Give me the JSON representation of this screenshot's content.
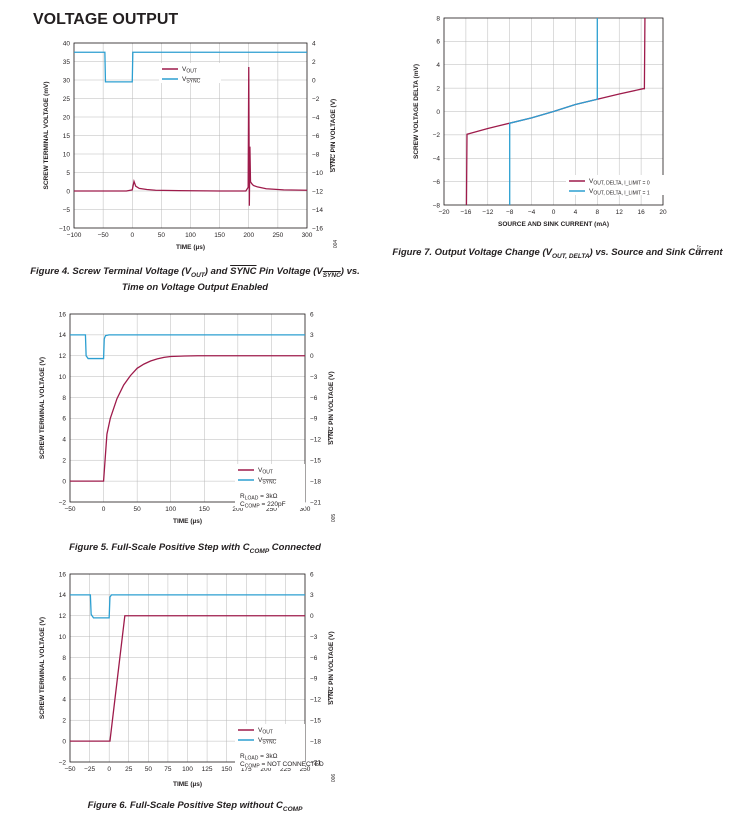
{
  "page": {
    "section_title": "VOLTAGE OUTPUT"
  },
  "captions": {
    "fig4_line1": "Figure 4. Screw Terminal Voltage (V",
    "fig4_line1_sub": "OUT",
    "fig4_line1_mid": ") and ",
    "fig4_line1_sync": "SYNC",
    "fig4_line1_mid2": " Pin Voltage (V",
    "fig4_line1_sub2": "SYNC",
    "fig4_line1_end": ") vs.",
    "fig4_line2": "Time on Voltage Output Enabled",
    "fig5": "Figure 5. Full-Scale Positive Step with C",
    "fig5_sub": "COMP",
    "fig5_end": " Connected",
    "fig6": "Figure 6. Full-Scale Positive Step without C",
    "fig6_sub": "COMP",
    "fig7": "Figure 7. Output Voltage Change (V",
    "fig7_sub": "OUT, DELTA",
    "fig7_end": ") vs. Source and Sink Current"
  },
  "colors": {
    "vout": "#9e1b4b",
    "vsync": "#2c9fd1",
    "grid": "#b9b9b9",
    "axis": "#231f20"
  },
  "chart_data": [
    {
      "id": "fig4",
      "type": "line",
      "xlabel": "TIME (µs)",
      "ylabel": "SCREW TERMINAL VOLTAGE (mV)",
      "y2label": "SYNC PIN VOLTAGE (V)",
      "xlim": [
        -100,
        300
      ],
      "ylim": [
        -10,
        40
      ],
      "y2lim": [
        -16,
        4
      ],
      "xticks": [
        "−100",
        "−50",
        "0",
        "50",
        "100",
        "150",
        "200",
        "250",
        "300"
      ],
      "yticks": [
        "−10",
        "−5",
        "0",
        "5",
        "10",
        "15",
        "20",
        "25",
        "30",
        "35",
        "40"
      ],
      "y2ticks": [
        "−16",
        "−14",
        "−12",
        "−10",
        "−8",
        "−6",
        "−4",
        "−2",
        "0",
        "2",
        "4"
      ],
      "legend": {
        "position": "top-center",
        "entries": [
          "VOUT",
          "VSYNC"
        ]
      },
      "fig_id": "004",
      "series": [
        {
          "name": "VOUT",
          "axis": "left",
          "x": [
            -100,
            -50,
            -10,
            0,
            3,
            6,
            12,
            25,
            40,
            80,
            150,
            195,
            199,
            200,
            201,
            202,
            203,
            205,
            208,
            215,
            230,
            260,
            300
          ],
          "y": [
            0,
            0,
            0,
            0.3,
            2.6,
            1.3,
            0.7,
            0.4,
            0.2,
            0.1,
            0,
            0,
            1,
            33.5,
            -4,
            12,
            2.5,
            2,
            1.5,
            1.1,
            0.6,
            0.3,
            0.2
          ]
        },
        {
          "name": "VSYNC",
          "axis": "right",
          "x": [
            -100,
            -47,
            -46,
            0,
            1,
            300
          ],
          "y": [
            3,
            3,
            -0.2,
            -0.2,
            3,
            3
          ]
        }
      ]
    },
    {
      "id": "fig5",
      "type": "line",
      "xlabel": "TIME (µs)",
      "ylabel": "SCREW TERMINAL VOLTAGE (V)",
      "y2label": "SYNC PIN VOLTAGE (V)",
      "xlim": [
        -50,
        300
      ],
      "ylim": [
        -2,
        16
      ],
      "y2lim": [
        -21,
        6
      ],
      "xticks": [
        "−50",
        "0",
        "50",
        "100",
        "150",
        "200",
        "250",
        "300"
      ],
      "yticks": [
        "−2",
        "0",
        "2",
        "4",
        "6",
        "8",
        "10",
        "12",
        "14",
        "16"
      ],
      "y2ticks": [
        "−21",
        "−18",
        "−15",
        "−12",
        "−9",
        "−6",
        "−3",
        "0",
        "3",
        "6"
      ],
      "legend": {
        "position": "bottom-right",
        "entries": [
          "VOUT",
          "VSYNC"
        ]
      },
      "notes": [
        "RLOAD = 3kΩ",
        "CCOMP = 220pF"
      ],
      "fig_id": "005",
      "series": [
        {
          "name": "VOUT",
          "axis": "left",
          "x": [
            -50,
            -2,
            0,
            5,
            10,
            20,
            30,
            40,
            50,
            60,
            70,
            80,
            90,
            100,
            120,
            140,
            160,
            200,
            300
          ],
          "y": [
            0,
            0,
            0,
            4.5,
            6,
            7.9,
            9.2,
            10.1,
            10.8,
            11.2,
            11.5,
            11.7,
            11.85,
            11.93,
            11.98,
            12,
            12,
            12,
            12
          ]
        },
        {
          "name": "VSYNC",
          "axis": "right",
          "x": [
            -50,
            -27,
            -26,
            -23,
            0,
            1,
            2,
            3,
            8,
            300
          ],
          "y": [
            3,
            3,
            0,
            -0.4,
            -0.4,
            2.4,
            2.7,
            2.9,
            3,
            3
          ]
        }
      ]
    },
    {
      "id": "fig6",
      "type": "line",
      "xlabel": "TIME (µs)",
      "ylabel": "SCREW TERMINAL VOLTAGE (V)",
      "y2label": "SYNC PIN VOLTAGE (V)",
      "xlim": [
        -50,
        250
      ],
      "ylim": [
        -2,
        16
      ],
      "y2lim": [
        -21,
        6
      ],
      "xticks": [
        "−50",
        "−25",
        "0",
        "25",
        "50",
        "75",
        "100",
        "125",
        "150",
        "175",
        "200",
        "225",
        "250"
      ],
      "yticks": [
        "−2",
        "0",
        "2",
        "4",
        "6",
        "8",
        "10",
        "12",
        "14",
        "16"
      ],
      "y2ticks": [
        "−21",
        "−18",
        "−15",
        "−12",
        "−9",
        "−6",
        "−3",
        "0",
        "3",
        "6"
      ],
      "legend": {
        "position": "bottom-right",
        "entries": [
          "VOUT",
          "VSYNC"
        ]
      },
      "notes": [
        "RLOAD = 3kΩ",
        "CCOMP = NOT CONNECTED"
      ],
      "fig_id": "006",
      "series": [
        {
          "name": "VOUT",
          "axis": "right_curve_unused",
          "x": [
            -50,
            0,
            1,
            20,
            22,
            250
          ],
          "y": [
            0,
            0,
            0,
            12,
            12,
            12
          ]
        },
        {
          "name": "VSYNC",
          "axis": "right",
          "x": [
            -50,
            -24,
            -23,
            -20,
            0,
            1,
            3,
            250
          ],
          "y": [
            3,
            3,
            0.2,
            -0.3,
            -0.3,
            2.7,
            3,
            3
          ]
        }
      ]
    },
    {
      "id": "fig7",
      "type": "line",
      "xlabel": "SOURCE AND SINK CURRENT (mA)",
      "ylabel": "SCREW VOLTAGE DELTA (mV)",
      "xlim": [
        -20,
        20
      ],
      "ylim": [
        -8,
        8
      ],
      "xticks": [
        "−20",
        "−16",
        "−12",
        "−8",
        "−4",
        "0",
        "4",
        "8",
        "12",
        "16",
        "20"
      ],
      "yticks": [
        "−8",
        "−6",
        "−4",
        "−2",
        "0",
        "2",
        "4",
        "6",
        "8"
      ],
      "legend": {
        "position": "bottom-right",
        "entries": [
          "VOUT, DELTA, I_LIMIT = 0",
          "VOUT, DELTA, I_LIMIT = 1"
        ]
      },
      "fig_id": "007",
      "series": [
        {
          "name": "VOUT, DELTA, I_LIMIT = 0",
          "x": [
            -15.9,
            -15.8,
            -12,
            -8,
            -4,
            0,
            4,
            8,
            12,
            16.4,
            16.6,
            16.7
          ],
          "y": [
            -8,
            -1.95,
            -1.45,
            -1.0,
            -0.55,
            0,
            0.6,
            1.05,
            1.5,
            1.95,
            1.95,
            8
          ]
        },
        {
          "name": "VOUT, DELTA, I_LIMIT = 1",
          "x": [
            -8,
            -8,
            -4,
            0,
            4,
            8,
            8
          ],
          "y": [
            -8,
            -1.0,
            -0.55,
            0,
            0.6,
            1.05,
            8
          ]
        }
      ]
    }
  ]
}
